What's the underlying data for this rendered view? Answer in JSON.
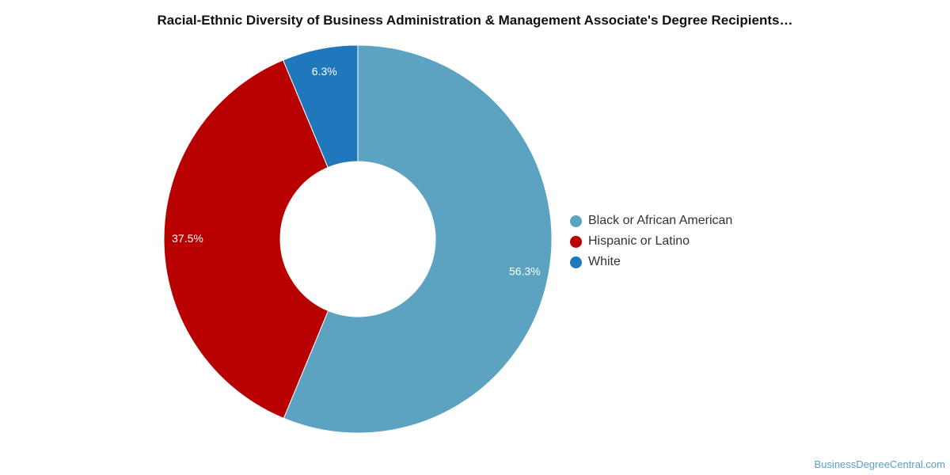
{
  "chart_data": {
    "type": "pie",
    "title": "Racial-Ethnic Diversity of Business Administration & Management Associate's Degree Recipients…",
    "categories": [
      "Black or African American",
      "Hispanic or Latino",
      "White"
    ],
    "values": [
      56.3,
      37.5,
      6.3
    ],
    "value_labels": [
      "56.3%",
      "37.5%",
      "6.3%"
    ],
    "colors": [
      "#5ba3c0",
      "#b90000",
      "#1f77bc"
    ],
    "donut": true,
    "legend_position": "right"
  },
  "watermark": "BusinessDegreeCentral.com"
}
